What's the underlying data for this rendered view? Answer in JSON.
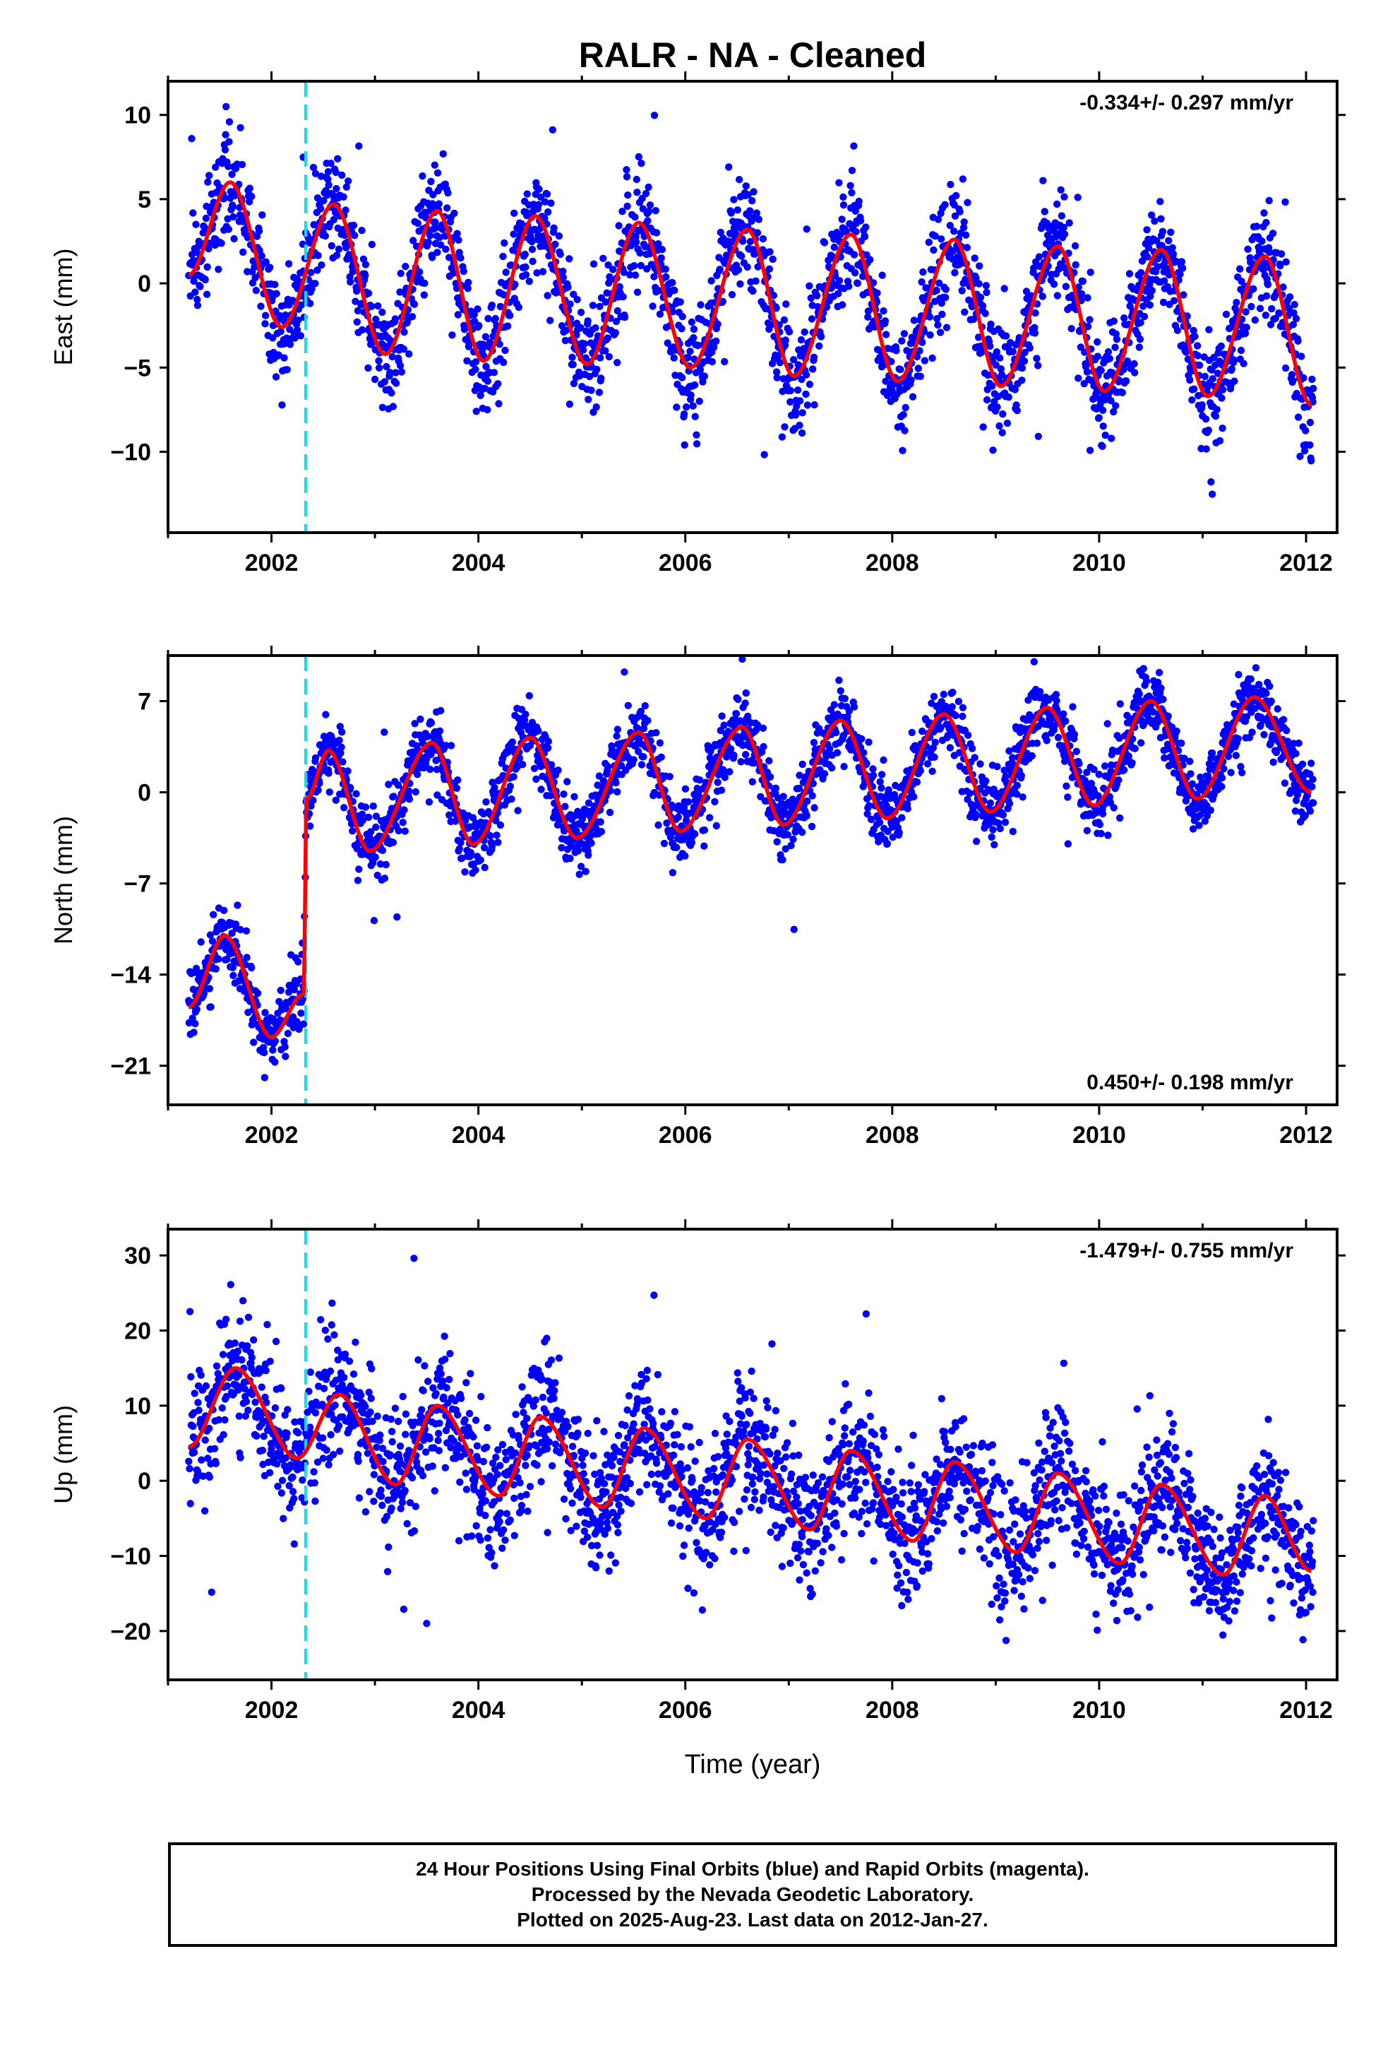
{
  "title": "RALR  - NA - Cleaned",
  "colors": {
    "points": "#0000ff",
    "fit": "#ff0000",
    "offset_line": "#00e5ee",
    "axis": "#000000"
  },
  "x_axis": {
    "label": "Time (year)",
    "range": [
      2001.0,
      2012.3
    ],
    "ticks": [
      "2002",
      "2004",
      "2006",
      "2008",
      "2010",
      "2012"
    ],
    "tick_values": [
      2002,
      2004,
      2006,
      2008,
      2010,
      2012
    ],
    "minor_tick_interval": 1
  },
  "offset_epoch": 2002.33,
  "caption": {
    "line1": "24 Hour Positions Using Final Orbits (blue) and Rapid Orbits (magenta).",
    "line2": "Processed by the Nevada Geodetic Laboratory.",
    "line3": "Plotted on 2025-Aug-23. Last data on 2012-Jan-27."
  },
  "chart_data": [
    {
      "type": "scatter",
      "component": "east",
      "ylabel": "East (mm)",
      "ylim": [
        -14.8,
        12.0
      ],
      "yticks": [
        "10",
        "5",
        "0",
        "−5",
        "−10"
      ],
      "ytick_values": [
        10,
        5,
        0,
        -5,
        -10
      ],
      "rate_text": "-0.334+/- 0.297 mm/yr",
      "rate_position": "top-right",
      "fit_curve": {
        "x": [
          2001.2,
          2001.6,
          2002.1,
          2002.6,
          2003.1,
          2003.6,
          2004.05,
          2004.55,
          2005.05,
          2005.55,
          2006.05,
          2006.6,
          2007.05,
          2007.6,
          2008.05,
          2008.6,
          2009.05,
          2009.6,
          2010.05,
          2010.6,
          2011.05,
          2011.6,
          2012.05
        ],
        "y": [
          0.5,
          6.0,
          -2.6,
          4.7,
          -4.2,
          4.3,
          -4.6,
          4.0,
          -4.8,
          3.6,
          -5.0,
          3.2,
          -5.5,
          2.9,
          -5.8,
          2.6,
          -6.1,
          2.2,
          -6.4,
          2.0,
          -6.7,
          1.6,
          -7.2
        ]
      }
    },
    {
      "type": "scatter",
      "component": "north",
      "ylabel": "North (mm)",
      "ylim": [
        -24.0,
        10.5
      ],
      "yticks": [
        "7",
        "0",
        "−7",
        "−14",
        "−21"
      ],
      "ytick_values": [
        7,
        0,
        -7,
        -14,
        -21
      ],
      "rate_text": "0.450+/- 0.198 mm/yr",
      "rate_position": "bottom-right",
      "fit_curve": {
        "x": [
          2001.2,
          2001.55,
          2002.0,
          2002.31,
          2002.34,
          2002.55,
          2002.95,
          2003.55,
          2003.95,
          2004.5,
          2004.95,
          2005.55,
          2005.95,
          2006.55,
          2006.95,
          2007.5,
          2007.95,
          2008.5,
          2008.95,
          2009.5,
          2009.95,
          2010.5,
          2010.95,
          2011.5,
          2012.05
        ],
        "y": [
          -16.5,
          -11.0,
          -18.8,
          -15.5,
          -0.5,
          3.2,
          -4.5,
          3.8,
          -4.0,
          4.2,
          -3.5,
          4.6,
          -3.0,
          5.0,
          -2.5,
          5.5,
          -2.0,
          6.0,
          -1.5,
          6.5,
          -1.0,
          7.0,
          -0.5,
          7.3,
          0.0
        ]
      }
    },
    {
      "type": "scatter",
      "component": "up",
      "ylabel": "Up (mm)",
      "ylim": [
        -26.5,
        33.5
      ],
      "yticks": [
        "30",
        "20",
        "10",
        "0",
        "−10",
        "−20"
      ],
      "ytick_values": [
        30,
        20,
        10,
        0,
        -10,
        -20
      ],
      "rate_text": "-1.479+/- 0.755 mm/yr",
      "rate_position": "top-right",
      "fit_curve": {
        "x": [
          2001.2,
          2001.65,
          2002.25,
          2002.65,
          2003.2,
          2003.6,
          2004.2,
          2004.6,
          2005.2,
          2005.6,
          2006.2,
          2006.6,
          2007.2,
          2007.6,
          2008.2,
          2008.6,
          2009.2,
          2009.6,
          2010.2,
          2010.6,
          2011.2,
          2011.6,
          2012.05
        ],
        "y": [
          4.5,
          15.0,
          3.0,
          11.5,
          -0.5,
          10.0,
          -2.0,
          8.5,
          -3.5,
          7.0,
          -5.0,
          5.5,
          -6.5,
          4.0,
          -8.0,
          2.5,
          -9.5,
          1.0,
          -11.0,
          -0.5,
          -12.5,
          -2.0,
          -12.0
        ]
      }
    }
  ]
}
